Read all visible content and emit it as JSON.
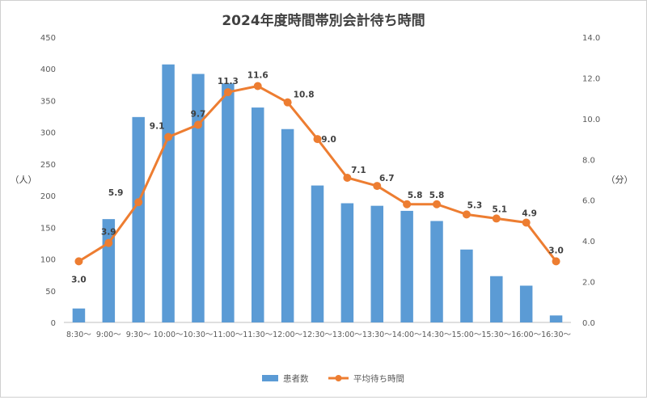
{
  "chart_data": {
    "type": "bar",
    "title": "2024年度時間帯別会計待ち時間",
    "categories": [
      "8:30～",
      "9:00～",
      "9:30～",
      "10:00～",
      "10:30～",
      "11:00～",
      "11:30～",
      "12:00～",
      "12:30～",
      "13:00～",
      "13:30～",
      "14:00～",
      "14:30～",
      "15:00～",
      "15:30～",
      "16:00～",
      "16:30～"
    ],
    "ylabel_left": "（人）",
    "ylabel_right": "（分）",
    "y_left_ticks": [
      "0",
      "50",
      "100",
      "150",
      "200",
      "250",
      "300",
      "350",
      "400",
      "450"
    ],
    "y_right_ticks": [
      "0.0",
      "2.0",
      "4.0",
      "6.0",
      "8.0",
      "10.0",
      "12.0",
      "14.0"
    ],
    "ylim_left": [
      0,
      450
    ],
    "ylim_right": [
      0,
      14
    ],
    "grid": false,
    "legend_position": "bottom",
    "series": [
      {
        "name": "患者数",
        "type": "bar",
        "axis": "left",
        "color": "#5b9bd5",
        "values": [
          22,
          163,
          324,
          407,
          392,
          377,
          339,
          305,
          216,
          188,
          184,
          176,
          160,
          115,
          73,
          58,
          11
        ]
      },
      {
        "name": "平均待ち時間",
        "type": "line",
        "axis": "right",
        "color": "#ed7d31",
        "values": [
          3.0,
          3.9,
          5.9,
          9.1,
          9.7,
          11.3,
          11.6,
          10.8,
          9.0,
          7.1,
          6.7,
          5.8,
          5.8,
          5.3,
          5.1,
          4.9,
          3.0
        ],
        "labels": [
          "3.0",
          "3.9",
          "5.9",
          "9.1",
          "9.7",
          "11.3",
          "11.6",
          "10.8",
          "9.0",
          "7.1",
          "6.7",
          "5.8",
          "5.8",
          "5.3",
          "5.1",
          "4.9",
          "3.0"
        ]
      }
    ]
  }
}
